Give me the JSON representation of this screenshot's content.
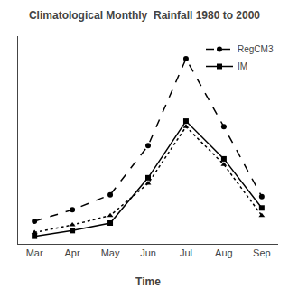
{
  "chart_data": {
    "type": "line",
    "title": "Climatological Monthly  Rainfall 1980 to 2000",
    "xlabel": "Time",
    "categories": [
      "Mar",
      "Apr",
      "May",
      "Jun",
      "Jul",
      "Aug",
      "Sep"
    ],
    "series": [
      {
        "name": "RegCM3",
        "color": "black",
        "line_style": "dashed",
        "marker": "circle",
        "values": [
          1.2,
          1.8,
          2.6,
          5.2,
          9.8,
          6.2,
          2.5
        ]
      },
      {
        "name": "IM",
        "color": "black",
        "line_style": "solid",
        "marker": "square",
        "values": [
          0.4,
          0.7,
          1.1,
          3.5,
          6.5,
          4.5,
          1.9
        ]
      },
      {
        "color": "black",
        "line_style": "dotted",
        "marker": "triangle",
        "values": [
          0.6,
          1.0,
          1.5,
          3.2,
          6.2,
          4.2,
          1.5
        ]
      }
    ],
    "ylim": [
      0,
      11
    ],
    "yticks": [],
    "grid": false,
    "legend": "upper right",
    "tick_labels": "x"
  }
}
